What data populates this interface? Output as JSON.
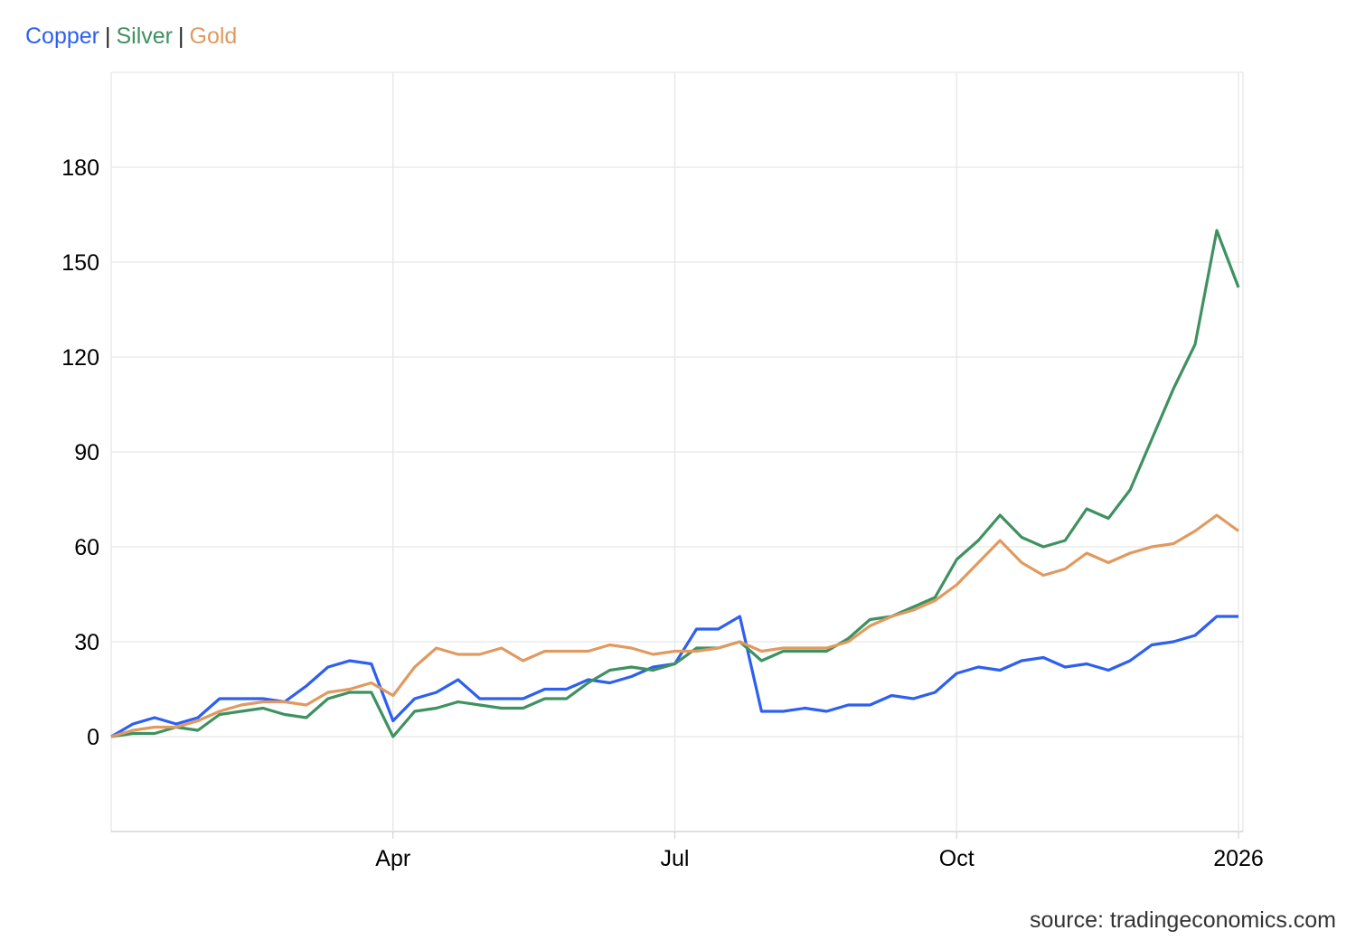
{
  "chart_data": {
    "type": "line",
    "legend_separator": "|",
    "source": "source: tradingeconomics.com",
    "categories": [
      null,
      null,
      null,
      null,
      null,
      null,
      null,
      null,
      null,
      null,
      null,
      null,
      null,
      "Apr",
      null,
      null,
      null,
      null,
      null,
      null,
      null,
      null,
      null,
      null,
      null,
      null,
      "Jul",
      null,
      null,
      null,
      null,
      null,
      null,
      null,
      null,
      null,
      null,
      null,
      null,
      "Oct",
      null,
      null,
      null,
      null,
      null,
      null,
      null,
      null,
      null,
      null,
      null,
      null,
      "2026"
    ],
    "series": [
      {
        "name": "Copper",
        "color": "#2d5ff0",
        "values": [
          0,
          4,
          6,
          4,
          6,
          12,
          12,
          12,
          11,
          16,
          22,
          24,
          23,
          5,
          12,
          14,
          18,
          12,
          12,
          12,
          15,
          15,
          18,
          17,
          19,
          22,
          23,
          34,
          34,
          38,
          8,
          8,
          9,
          8,
          10,
          10,
          13,
          12,
          14,
          20,
          22,
          21,
          24,
          25,
          22,
          23,
          21,
          24,
          29,
          30,
          32,
          38,
          38
        ]
      },
      {
        "name": "Silver",
        "color": "#3e9160",
        "values": [
          0,
          1,
          1,
          3,
          2,
          7,
          8,
          9,
          7,
          6,
          12,
          14,
          14,
          0,
          8,
          9,
          11,
          10,
          9,
          9,
          12,
          12,
          17,
          21,
          22,
          21,
          23,
          28,
          28,
          30,
          24,
          27,
          27,
          27,
          31,
          37,
          38,
          41,
          44,
          56,
          62,
          70,
          63,
          60,
          62,
          72,
          69,
          78,
          94,
          110,
          124,
          160,
          142
        ]
      },
      {
        "name": "Gold",
        "color": "#e09a60",
        "values": [
          0,
          2,
          3,
          3,
          5,
          8,
          10,
          11,
          11,
          10,
          14,
          15,
          17,
          13,
          22,
          28,
          26,
          26,
          28,
          24,
          27,
          27,
          27,
          29,
          28,
          26,
          27,
          27,
          28,
          30,
          27,
          28,
          28,
          28,
          30,
          35,
          38,
          40,
          43,
          48,
          55,
          62,
          55,
          51,
          53,
          58,
          55,
          58,
          60,
          61,
          65,
          70,
          65
        ]
      }
    ],
    "ylim": [
      -30,
      210
    ],
    "yticks": [
      0,
      30,
      60,
      90,
      120,
      150,
      180
    ],
    "grid": true
  }
}
